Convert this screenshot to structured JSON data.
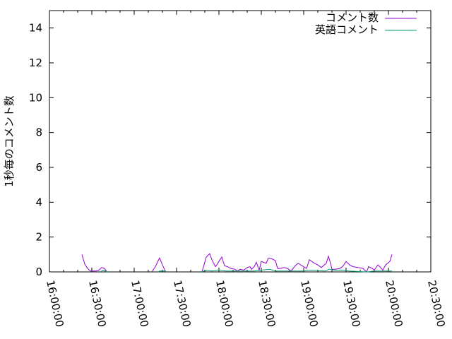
{
  "chart_data": {
    "type": "line",
    "title": "",
    "xlabel": "",
    "ylabel": "1秒毎のコメント数",
    "xlim": [
      "16:00:00",
      "20:30:00"
    ],
    "ylim": [
      0,
      15
    ],
    "x_ticks": [
      "16:00:00",
      "16:30:00",
      "17:00:00",
      "17:30:00",
      "18:00:00",
      "18:30:00",
      "19:00:00",
      "19:30:00",
      "20:00:00",
      "20:30:00"
    ],
    "y_ticks": [
      "0",
      "2",
      "4",
      "6",
      "8",
      "10",
      "12",
      "14"
    ],
    "grid": false,
    "legend_placement": "top-right",
    "series": [
      {
        "name": "コメント数",
        "color": "#9400d3",
        "segments": [
          [
            [
              "16:23:00",
              1.0
            ],
            [
              "16:25:00",
              0.45
            ],
            [
              "16:27:00",
              0.2
            ],
            [
              "16:29:00",
              0.05
            ],
            [
              "16:31:00",
              0.05
            ],
            [
              "16:33:00",
              0.05
            ],
            [
              "16:35:00",
              0.1
            ],
            [
              "16:37:00",
              0.25
            ],
            [
              "16:39:00",
              0.2
            ],
            [
              "16:40:30",
              0.0
            ]
          ],
          [
            [
              "17:12:30",
              0.0
            ],
            [
              "17:15:00",
              0.3
            ],
            [
              "17:17:00",
              0.65
            ],
            [
              "17:18:00",
              0.8
            ],
            [
              "17:20:00",
              0.4
            ],
            [
              "17:22:00",
              0.05
            ],
            [
              "17:23:00",
              0.0
            ]
          ],
          [
            [
              "17:48:00",
              0.0
            ],
            [
              "17:51:00",
              0.85
            ],
            [
              "17:53:30",
              1.05
            ],
            [
              "17:55:00",
              0.7
            ],
            [
              "17:57:30",
              0.3
            ],
            [
              "18:00:00",
              0.6
            ],
            [
              "18:02:00",
              0.85
            ],
            [
              "18:04:00",
              0.35
            ],
            [
              "18:06:00",
              0.3
            ],
            [
              "18:08:30",
              0.2
            ],
            [
              "18:11:30",
              0.15
            ],
            [
              "18:13:00",
              0.05
            ],
            [
              "18:15:00",
              0.15
            ],
            [
              "18:17:30",
              0.1
            ],
            [
              "18:20:00",
              0.25
            ],
            [
              "18:22:00",
              0.3
            ],
            [
              "18:23:00",
              0.15
            ],
            [
              "18:25:00",
              0.3
            ],
            [
              "18:26:30",
              0.55
            ],
            [
              "18:28:30",
              0.1
            ],
            [
              "18:30:00",
              0.6
            ],
            [
              "18:31:30",
              0.55
            ],
            [
              "18:33:30",
              0.5
            ],
            [
              "18:35:00",
              0.8
            ],
            [
              "18:37:30",
              0.75
            ],
            [
              "18:40:00",
              0.65
            ],
            [
              "18:41:30",
              0.2
            ],
            [
              "18:43:30",
              0.2
            ],
            [
              "18:46:00",
              0.25
            ],
            [
              "18:48:30",
              0.2
            ],
            [
              "18:51:00",
              0.05
            ],
            [
              "18:54:00",
              0.35
            ],
            [
              "18:56:00",
              0.5
            ],
            [
              "18:59:00",
              0.35
            ],
            [
              "19:02:00",
              0.2
            ],
            [
              "19:04:00",
              0.7
            ],
            [
              "19:07:30",
              0.5
            ],
            [
              "19:10:00",
              0.4
            ],
            [
              "19:12:30",
              0.25
            ],
            [
              "19:16:00",
              0.5
            ],
            [
              "19:17:30",
              0.9
            ],
            [
              "19:19:00",
              0.5
            ],
            [
              "19:20:00",
              0.15
            ],
            [
              "19:22:30",
              0.15
            ],
            [
              "19:25:30",
              0.2
            ],
            [
              "19:27:30",
              0.3
            ],
            [
              "19:30:00",
              0.6
            ],
            [
              "19:32:30",
              0.4
            ],
            [
              "19:35:00",
              0.3
            ],
            [
              "19:38:30",
              0.25
            ],
            [
              "19:42:00",
              0.2
            ],
            [
              "19:44:30",
              0.0
            ],
            [
              "19:46:00",
              0.3
            ],
            [
              "19:48:30",
              0.2
            ],
            [
              "19:50:00",
              0.1
            ],
            [
              "19:52:30",
              0.4
            ],
            [
              "19:54:30",
              0.25
            ],
            [
              "19:56:00",
              0.1
            ],
            [
              "19:58:00",
              0.4
            ],
            [
              "19:59:30",
              0.5
            ],
            [
              "20:01:00",
              0.6
            ],
            [
              "20:02:30",
              1.0
            ]
          ]
        ]
      },
      {
        "name": "英語コメント",
        "color": "#009e73",
        "segments": [
          [
            [
              "16:36:00",
              0.0
            ],
            [
              "16:38:00",
              0.1
            ],
            [
              "16:40:30",
              0.0
            ]
          ],
          [
            [
              "17:17:00",
              0.0
            ],
            [
              "17:18:00",
              0.05
            ],
            [
              "17:22:00",
              0.05
            ],
            [
              "17:23:00",
              0.0
            ]
          ],
          [
            [
              "17:48:00",
              0.0
            ],
            [
              "17:51:00",
              0.1
            ],
            [
              "17:55:00",
              0.05
            ],
            [
              "18:00:00",
              0.1
            ],
            [
              "18:05:00",
              0.05
            ],
            [
              "18:25:00",
              0.05
            ],
            [
              "18:30:00",
              0.1
            ],
            [
              "18:36:00",
              0.15
            ],
            [
              "18:40:00",
              0.05
            ],
            [
              "19:00:00",
              0.05
            ],
            [
              "19:05:00",
              0.1
            ],
            [
              "19:15:00",
              0.05
            ],
            [
              "19:18:00",
              0.15
            ],
            [
              "19:22:00",
              0.1
            ],
            [
              "19:28:00",
              0.1
            ],
            [
              "19:32:00",
              0.05
            ],
            [
              "19:45:00",
              0.0
            ],
            [
              "19:50:00",
              0.05
            ],
            [
              "20:02:30",
              0.05
            ]
          ]
        ]
      }
    ]
  }
}
